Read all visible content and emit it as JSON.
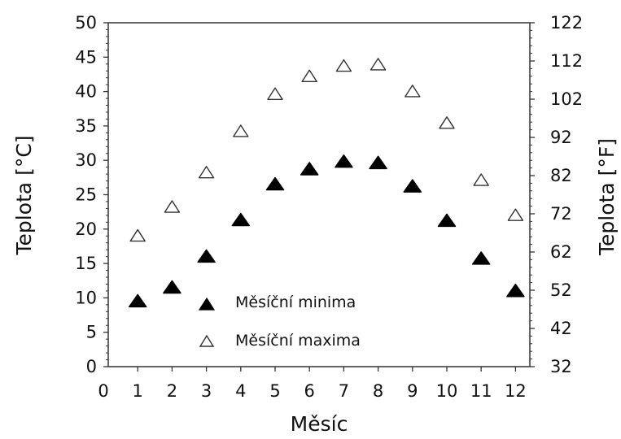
{
  "chart_data": {
    "type": "scatter",
    "xlabel": "Měsíc",
    "ylabel": "Teplota [°C]",
    "y2label": "Teplota [°F]",
    "xlim": [
      0,
      12.5
    ],
    "ylim": [
      0,
      50
    ],
    "y2lim": [
      32,
      122
    ],
    "x_ticks": [
      0,
      1,
      2,
      3,
      4,
      5,
      6,
      7,
      8,
      9,
      10,
      11,
      12
    ],
    "y_ticks": [
      0,
      5,
      10,
      15,
      20,
      25,
      30,
      35,
      40,
      45,
      50
    ],
    "y2_ticks": [
      32,
      42,
      52,
      62,
      72,
      82,
      92,
      102,
      112,
      122
    ],
    "x": [
      1,
      2,
      3,
      4,
      5,
      6,
      7,
      8,
      9,
      10,
      11,
      12
    ],
    "grid": false,
    "legend_position": "lower-center",
    "series": [
      {
        "name": "Měsíční minima",
        "marker": "filled-triangle",
        "color": "#000000",
        "values": [
          9.5,
          11.5,
          16,
          21.3,
          26.5,
          28.7,
          29.8,
          29.6,
          26.2,
          21.2,
          15.7,
          11
        ]
      },
      {
        "name": "Měsíční maxima",
        "marker": "open-triangle",
        "color": "#333333",
        "values": [
          19,
          23.2,
          28.2,
          34.2,
          39.6,
          42.2,
          43.7,
          43.9,
          40,
          35.4,
          27.1,
          22
        ]
      }
    ]
  }
}
